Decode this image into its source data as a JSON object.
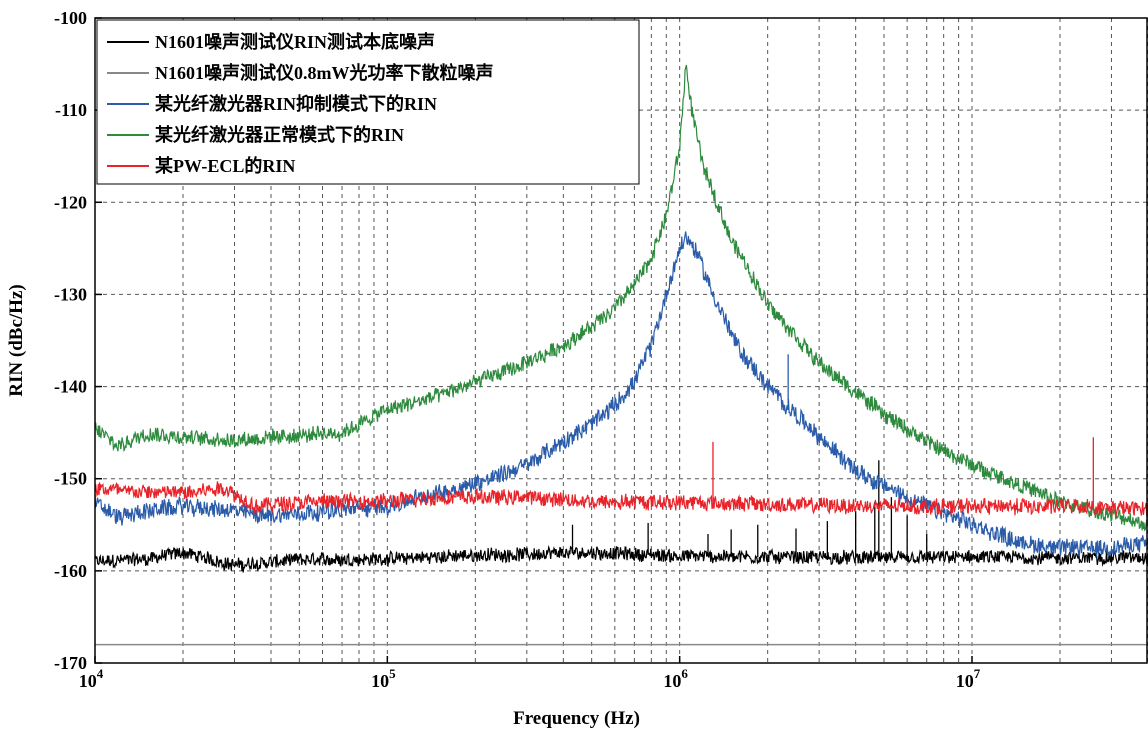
{
  "chart_data": {
    "type": "line",
    "x_scale": "log",
    "xlabel": "Frequency (Hz)",
    "ylabel": "RIN (dBc/Hz)",
    "xlim": [
      10000,
      40000000
    ],
    "ylim": [
      -170,
      -100
    ],
    "grid": true,
    "legend_position": "top-left",
    "x_ticks": [
      {
        "value": 10000,
        "base": "10",
        "exp": "4"
      },
      {
        "value": 100000,
        "base": "10",
        "exp": "5"
      },
      {
        "value": 1000000,
        "base": "10",
        "exp": "6"
      },
      {
        "value": 10000000,
        "base": "10",
        "exp": "7"
      }
    ],
    "y_ticks": [
      -100,
      -110,
      -120,
      -130,
      -140,
      -150,
      -160,
      -170
    ],
    "series": [
      {
        "name": "N1601噪声测试仪RIN测试本底噪声",
        "color": "#000000",
        "noise": 0.7,
        "points": [
          [
            10000,
            -159
          ],
          [
            15000,
            -158.7
          ],
          [
            20000,
            -158
          ],
          [
            30000,
            -159.4
          ],
          [
            50000,
            -158.8
          ],
          [
            100000,
            -158.7
          ],
          [
            200000,
            -158.3
          ],
          [
            300000,
            -158.2
          ],
          [
            500000,
            -158
          ],
          [
            1000000,
            -158.4
          ],
          [
            2000000,
            -158.5
          ],
          [
            5000000,
            -158.6
          ],
          [
            10000000,
            -158.5
          ],
          [
            20000000,
            -158.6
          ],
          [
            40000000,
            -158.5
          ]
        ],
        "spikes": [
          [
            430000,
            -155
          ],
          [
            780000,
            -154.8
          ],
          [
            1250000,
            -156
          ],
          [
            1500000,
            -155.5
          ],
          [
            1850000,
            -155
          ],
          [
            2500000,
            -155.4
          ],
          [
            3200000,
            -154.6
          ],
          [
            4000000,
            -153.5
          ],
          [
            4650000,
            -152.5
          ],
          [
            4800000,
            -148
          ],
          [
            5300000,
            -152
          ],
          [
            6000000,
            -154
          ],
          [
            7000000,
            -156
          ]
        ]
      },
      {
        "name": "N1601噪声测试仪0.8mW光功率下散粒噪声",
        "color": "#888888",
        "noise": 0,
        "points": [
          [
            10000,
            -168
          ],
          [
            40000000,
            -168
          ]
        ],
        "spikes": []
      },
      {
        "name": "某光纤激光器RIN抑制模式下的RIN",
        "color": "#2a5caa",
        "noise": 0.9,
        "points": [
          [
            10000,
            -152.6
          ],
          [
            12000,
            -154.2
          ],
          [
            15000,
            -153.5
          ],
          [
            20000,
            -153
          ],
          [
            30000,
            -153.5
          ],
          [
            40000,
            -154
          ],
          [
            60000,
            -153.5
          ],
          [
            100000,
            -153
          ],
          [
            150000,
            -151.5
          ],
          [
            200000,
            -150.5
          ],
          [
            300000,
            -148.5
          ],
          [
            400000,
            -146
          ],
          [
            500000,
            -144
          ],
          [
            600000,
            -142
          ],
          [
            700000,
            -139.5
          ],
          [
            800000,
            -135.5
          ],
          [
            900000,
            -130
          ],
          [
            1000000,
            -125
          ],
          [
            1050000,
            -123.8
          ],
          [
            1150000,
            -125.5
          ],
          [
            1300000,
            -130
          ],
          [
            1600000,
            -136
          ],
          [
            2000000,
            -140
          ],
          [
            3000000,
            -145.5
          ],
          [
            4000000,
            -149
          ],
          [
            5000000,
            -150.8
          ],
          [
            7000000,
            -153
          ],
          [
            10000000,
            -155
          ],
          [
            15000000,
            -157
          ],
          [
            20000000,
            -157.5
          ],
          [
            30000000,
            -157.5
          ],
          [
            40000000,
            -157
          ]
        ],
        "spikes": [
          [
            2350000,
            -136.5
          ]
        ]
      },
      {
        "name": "某光纤激光器正常模式下的RIN",
        "color": "#2e8b3e",
        "noise": 0.8,
        "points": [
          [
            10000,
            -144.5
          ],
          [
            12000,
            -146.5
          ],
          [
            15000,
            -145
          ],
          [
            20000,
            -145.5
          ],
          [
            30000,
            -145.8
          ],
          [
            50000,
            -145.3
          ],
          [
            70000,
            -145
          ],
          [
            100000,
            -142.5
          ],
          [
            150000,
            -141
          ],
          [
            200000,
            -139.5
          ],
          [
            300000,
            -137.5
          ],
          [
            400000,
            -135.5
          ],
          [
            500000,
            -133.5
          ],
          [
            600000,
            -131.5
          ],
          [
            700000,
            -129
          ],
          [
            800000,
            -126
          ],
          [
            900000,
            -121.5
          ],
          [
            1000000,
            -114
          ],
          [
            1050000,
            -105
          ],
          [
            1100000,
            -110
          ],
          [
            1200000,
            -116
          ],
          [
            1500000,
            -124
          ],
          [
            2000000,
            -131
          ],
          [
            3000000,
            -137.5
          ],
          [
            5000000,
            -143
          ],
          [
            7000000,
            -146
          ],
          [
            10000000,
            -148.5
          ],
          [
            20000000,
            -152.5
          ],
          [
            40000000,
            -155
          ]
        ],
        "spikes": []
      },
      {
        "name": "某PW-ECL的RIN",
        "color": "#e8232a",
        "noise": 0.8,
        "points": [
          [
            10000,
            -151
          ],
          [
            15000,
            -151.5
          ],
          [
            20000,
            -151.5
          ],
          [
            28000,
            -151
          ],
          [
            35000,
            -153
          ],
          [
            50000,
            -152.5
          ],
          [
            100000,
            -152.5
          ],
          [
            150000,
            -152
          ],
          [
            200000,
            -152
          ],
          [
            300000,
            -152
          ],
          [
            500000,
            -152.5
          ],
          [
            1000000,
            -152.5
          ],
          [
            2000000,
            -152.8
          ],
          [
            5000000,
            -153
          ],
          [
            10000000,
            -153
          ],
          [
            20000000,
            -153
          ],
          [
            40000000,
            -153.3
          ]
        ],
        "spikes": [
          [
            1300000,
            -146
          ],
          [
            26000000,
            -145.5
          ]
        ]
      }
    ]
  }
}
